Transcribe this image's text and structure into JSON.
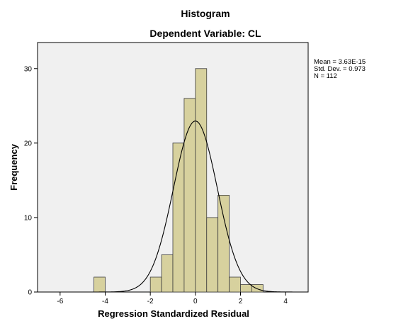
{
  "chart_data": {
    "type": "bar",
    "title": "Histogram",
    "subtitle": "Dependent Variable: CL",
    "xlabel": "Regression Standardized Residual",
    "ylabel": "Frequency",
    "xlim": [
      -7,
      5
    ],
    "ylim": [
      0,
      33.5
    ],
    "x_ticks": [
      "-6",
      "-4",
      "-2",
      "0",
      "2",
      "4"
    ],
    "x_tick_values": [
      -6,
      -4,
      -2,
      0,
      2,
      4
    ],
    "y_ticks": [
      "0",
      "10",
      "20",
      "30"
    ],
    "y_tick_values": [
      0,
      10,
      20,
      30
    ],
    "bin_width": 0.5,
    "bins": [
      {
        "start": -4.5,
        "count": 2
      },
      {
        "start": -2.0,
        "count": 2
      },
      {
        "start": -1.5,
        "count": 5
      },
      {
        "start": -1.0,
        "count": 20
      },
      {
        "start": -0.5,
        "count": 26
      },
      {
        "start": 0.0,
        "count": 30
      },
      {
        "start": 0.5,
        "count": 10
      },
      {
        "start": 1.0,
        "count": 13
      },
      {
        "start": 1.5,
        "count": 2
      },
      {
        "start": 2.0,
        "count": 1
      },
      {
        "start": 2.5,
        "count": 1
      }
    ],
    "stats": {
      "mean": "Mean = 3.63E-15",
      "std": "Std. Dev. = 0.973",
      "n": "N = 112"
    },
    "normal_curve": {
      "mean": 0,
      "sd": 0.973,
      "n": 112
    },
    "colors": {
      "bar": "#d7d19e",
      "plot_bg": "#f0f0f0"
    },
    "grid": false
  }
}
